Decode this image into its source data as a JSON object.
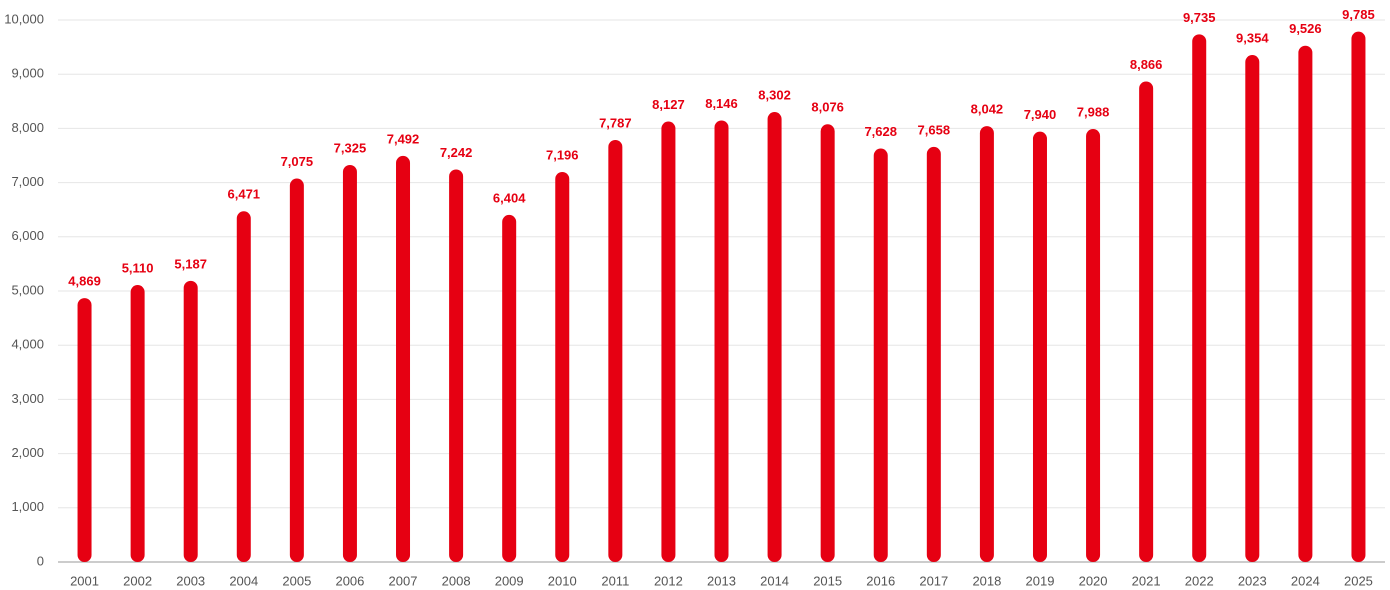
{
  "chart_data": {
    "type": "bar",
    "categories": [
      "2001",
      "2002",
      "2003",
      "2004",
      "2005",
      "2006",
      "2007",
      "2008",
      "2009",
      "2010",
      "2011",
      "2012",
      "2013",
      "2014",
      "2015",
      "2016",
      "2017",
      "2018",
      "2019",
      "2020",
      "2021",
      "2022",
      "2023",
      "2024",
      "2025"
    ],
    "values": [
      4869,
      5110,
      5187,
      6471,
      7075,
      7325,
      7492,
      7242,
      6404,
      7196,
      7787,
      8127,
      8146,
      8302,
      8076,
      7628,
      7658,
      8042,
      7940,
      7988,
      8866,
      9735,
      9354,
      9526,
      9785
    ],
    "value_labels": [
      "4,869",
      "5,110",
      "5,187",
      "6,471",
      "7,075",
      "7,325",
      "7,492",
      "7,242",
      "6,404",
      "7,196",
      "7,787",
      "8,127",
      "8,146",
      "8,302",
      "8,076",
      "7,628",
      "7,658",
      "8,042",
      "7,940",
      "7,988",
      "8,866",
      "9,735",
      "9,354",
      "9,526",
      "9,785"
    ],
    "color": "#e60012",
    "ylim": [
      0,
      10000
    ],
    "yticks": [
      0,
      {
        "value": 1000,
        "label": "1,000"
      },
      {
        "value": 2000,
        "label": "2,000"
      },
      {
        "value": 3000,
        "label": "3,000"
      },
      {
        "value": 4000,
        "label": "4,000"
      },
      {
        "value": 5000,
        "label": "5,000"
      },
      {
        "value": 6000,
        "label": "6,000"
      },
      {
        "value": 7000,
        "label": "7,000"
      },
      {
        "value": 8000,
        "label": "8,000"
      },
      {
        "value": 9000,
        "label": "9,000"
      },
      {
        "value": 10000,
        "label": "10,000"
      }
    ],
    "grid": true
  }
}
